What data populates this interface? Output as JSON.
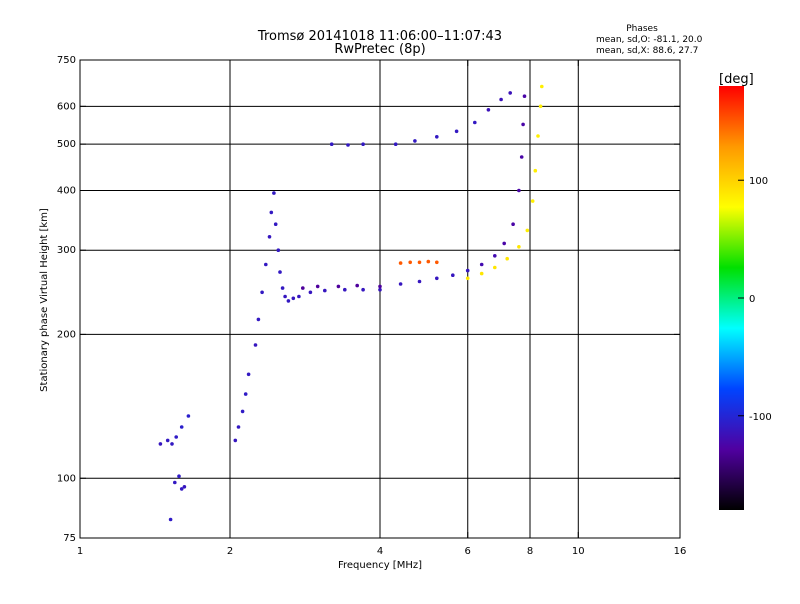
{
  "chart_data": {
    "type": "scatter",
    "title": "Tromsø 20141018 11:06:00–11:07:43",
    "subtitle": "RwPretec (8p)",
    "stats": {
      "heading": "Phases",
      "line1": "mean, sd,O: -81.1, 20.0",
      "line2": "mean, sd,X: 88.6, 27.7"
    },
    "xlabel": "Frequency [MHz]",
    "ylabel": "Stationary phase Virtual Height [km]",
    "xscale": "log",
    "yscale": "log",
    "xlim": [
      1,
      16
    ],
    "ylim": [
      75,
      750
    ],
    "xticks": [
      1,
      2,
      4,
      6,
      8,
      10,
      16
    ],
    "xtick_labels": [
      "1",
      "2",
      "4",
      "6",
      "8",
      "10",
      "16"
    ],
    "xgrid": [
      2,
      4,
      6,
      8,
      10
    ],
    "yticks": [
      75,
      100,
      200,
      300,
      400,
      500,
      600,
      750
    ],
    "ytick_labels": [
      "75",
      "100",
      "200",
      "300",
      "400",
      "500",
      "600",
      "750"
    ],
    "ygrid": [
      100,
      200,
      300,
      400,
      500,
      600
    ],
    "grid": true,
    "colorbar": {
      "label": "[deg]",
      "range": [
        -180,
        180
      ],
      "ticks": [
        100,
        0,
        -100
      ],
      "tick_labels": [
        "100",
        "0",
        "-100"
      ],
      "stops": [
        "#ff0000",
        "#ff9900",
        "#ffff00",
        "#00e000",
        "#00ffff",
        "#0044ff",
        "#5000a0",
        "#000000"
      ]
    },
    "series": [
      {
        "values": [
          [
            1.5,
            120,
            -110
          ],
          [
            1.53,
            118,
            -110
          ],
          [
            1.56,
            122,
            -108
          ],
          [
            1.6,
            128,
            -105
          ],
          [
            1.65,
            135,
            -105
          ],
          [
            1.45,
            118,
            -112
          ],
          [
            1.55,
            98,
            -110
          ],
          [
            1.58,
            101,
            -108
          ],
          [
            1.62,
            96,
            -112
          ],
          [
            1.6,
            95,
            -110
          ],
          [
            1.52,
            82,
            -108
          ],
          [
            2.05,
            120,
            -112
          ],
          [
            2.08,
            128,
            -110
          ],
          [
            2.12,
            138,
            -108
          ],
          [
            2.15,
            150,
            -108
          ],
          [
            2.18,
            165,
            -110
          ],
          [
            2.25,
            190,
            -112
          ],
          [
            2.28,
            215,
            -110
          ],
          [
            2.32,
            245,
            -110
          ],
          [
            2.36,
            280,
            -110
          ],
          [
            2.4,
            320,
            -112
          ],
          [
            2.42,
            360,
            -110
          ],
          [
            2.45,
            395,
            -110
          ],
          [
            2.47,
            340,
            -110
          ],
          [
            2.5,
            300,
            -110
          ],
          [
            2.52,
            270,
            -110
          ],
          [
            2.55,
            250,
            -110
          ],
          [
            2.58,
            240,
            -112
          ],
          [
            2.62,
            235,
            -110
          ],
          [
            2.68,
            238,
            -112
          ],
          [
            2.75,
            240,
            -112
          ],
          [
            2.9,
            245,
            -112
          ],
          [
            3.1,
            247,
            -112
          ],
          [
            3.4,
            248,
            -112
          ],
          [
            3.7,
            248,
            -112
          ],
          [
            4.0,
            248,
            -112
          ],
          [
            2.8,
            250,
            -130
          ],
          [
            3.0,
            252,
            -130
          ],
          [
            3.3,
            252,
            -130
          ],
          [
            3.6,
            253,
            -130
          ],
          [
            4.0,
            252,
            -130
          ],
          [
            4.4,
            255,
            -112
          ],
          [
            4.8,
            258,
            -112
          ],
          [
            5.2,
            262,
            -112
          ],
          [
            5.6,
            266,
            -112
          ],
          [
            6.0,
            272,
            -112
          ],
          [
            6.4,
            280,
            -120
          ],
          [
            6.8,
            292,
            -120
          ],
          [
            7.1,
            310,
            -125
          ],
          [
            7.4,
            340,
            -125
          ],
          [
            7.6,
            400,
            -125
          ],
          [
            7.7,
            470,
            -125
          ],
          [
            7.75,
            550,
            -125
          ],
          [
            7.8,
            630,
            -125
          ],
          [
            4.4,
            282,
            150
          ],
          [
            4.6,
            283,
            150
          ],
          [
            4.8,
            283,
            150
          ],
          [
            5.0,
            284,
            150
          ],
          [
            5.2,
            283,
            150
          ],
          [
            6.0,
            262,
            90
          ],
          [
            6.4,
            268,
            90
          ],
          [
            6.8,
            276,
            90
          ],
          [
            7.2,
            288,
            90
          ],
          [
            7.6,
            305,
            90
          ],
          [
            7.9,
            330,
            85
          ],
          [
            8.1,
            380,
            85
          ],
          [
            8.2,
            440,
            85
          ],
          [
            8.3,
            520,
            85
          ],
          [
            8.4,
            600,
            85
          ],
          [
            8.45,
            660,
            85
          ],
          [
            4.3,
            500,
            -110
          ],
          [
            4.7,
            508,
            -110
          ],
          [
            5.2,
            518,
            -110
          ],
          [
            5.7,
            532,
            -110
          ],
          [
            6.2,
            555,
            -110
          ],
          [
            6.6,
            590,
            -115
          ],
          [
            7.0,
            620,
            -115
          ],
          [
            7.3,
            640,
            -115
          ],
          [
            3.2,
            500,
            -110
          ],
          [
            3.45,
            498,
            -110
          ],
          [
            3.7,
            500,
            -110
          ]
        ]
      }
    ]
  }
}
